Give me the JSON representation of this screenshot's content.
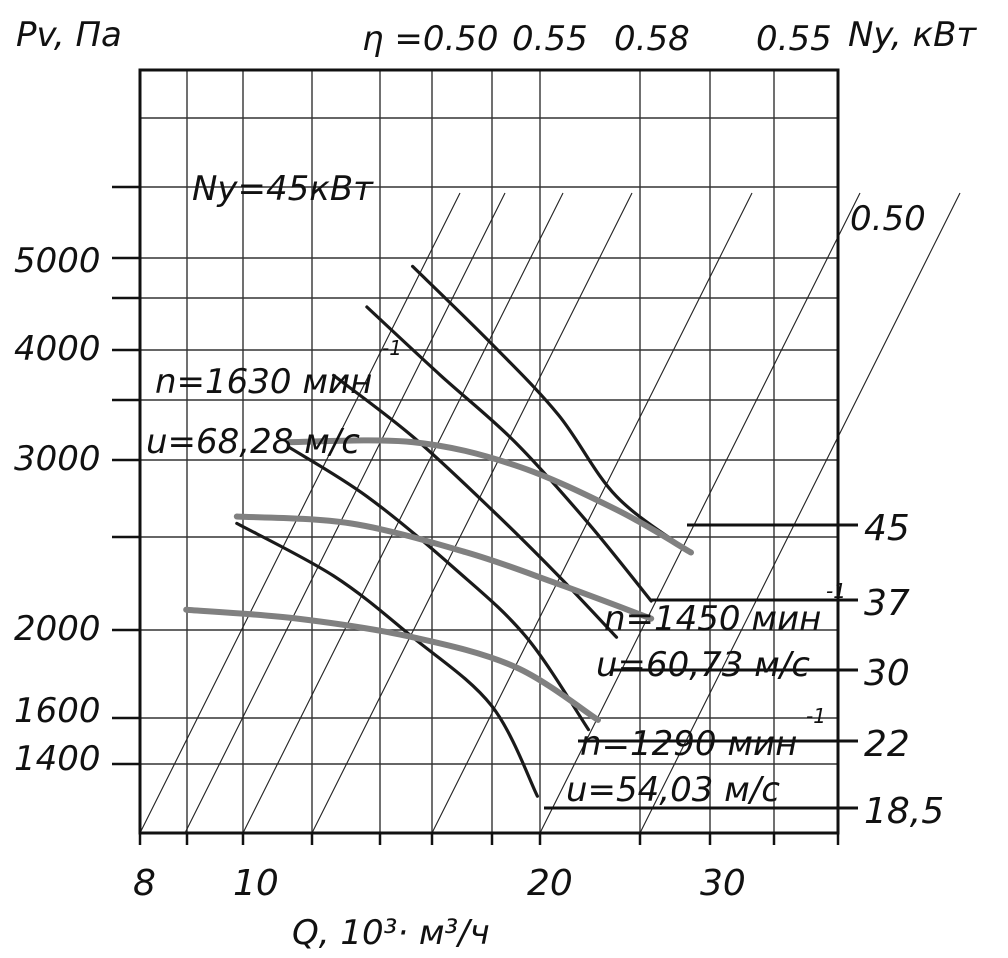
{
  "chart_data": {
    "type": "line",
    "title": "",
    "xlabel": "Q, 10³· м³/ч",
    "ylabel": "Pv, Па",
    "y2label": "Ny, кВт",
    "x_scale": "log",
    "y_scale": "log",
    "xlim": [
      8,
      40
    ],
    "ylim": [
      1150,
      9000
    ],
    "x_ticks": [
      "8",
      "10",
      "20",
      "30"
    ],
    "y_ticks": [
      "1400",
      "1600",
      "2000",
      "3000",
      "4000",
      "5000"
    ],
    "grid": true,
    "power_levels": [
      "45",
      "37",
      "30",
      "22",
      "18,5"
    ],
    "power_label": "Ny=45кВт",
    "efficiency_labels": [
      "η =0.50",
      "0.55",
      "0.58",
      "0.55",
      "0.50"
    ],
    "speed_labels": [
      {
        "n": "n=1630 мин",
        "exp": "-1",
        "u": "u=68,28 м/с"
      },
      {
        "n": "n=1450 мин",
        "exp": "-1",
        "u": "u=60,73 м/с"
      },
      {
        "n": "n=1290 мин",
        "exp": "-1",
        "u": "u=54,03 м/с"
      }
    ],
    "series": [
      {
        "kind": "pressure",
        "points": [
          [
            15.0,
            5300
          ],
          [
            18.0,
            4300
          ],
          [
            21.0,
            3550
          ],
          [
            24.0,
            2850
          ],
          [
            28.5,
            2450
          ]
        ]
      },
      {
        "kind": "pressure",
        "points": [
          [
            13.5,
            4750
          ],
          [
            16.0,
            3950
          ],
          [
            19.0,
            3300
          ],
          [
            22.5,
            2650
          ],
          [
            26.0,
            2150
          ]
        ]
      },
      {
        "kind": "pressure",
        "points": [
          [
            12.5,
            3950
          ],
          [
            15.0,
            3350
          ],
          [
            18.0,
            2750
          ],
          [
            21.0,
            2300
          ],
          [
            24.0,
            1950
          ]
        ]
      },
      {
        "kind": "pressure",
        "points": [
          [
            11.3,
            3250
          ],
          [
            13.5,
            2850
          ],
          [
            16.5,
            2350
          ],
          [
            19.5,
            1950
          ],
          [
            22.5,
            1520
          ]
        ]
      },
      {
        "kind": "pressure",
        "points": [
          [
            10.0,
            2650
          ],
          [
            12.5,
            2300
          ],
          [
            15.0,
            1950
          ],
          [
            18.0,
            1620
          ],
          [
            20.0,
            1270
          ]
        ]
      },
      {
        "kind": "speed",
        "points": [
          [
            11.3,
            3300
          ],
          [
            15.0,
            3300
          ],
          [
            19.0,
            3100
          ],
          [
            24.0,
            2750
          ],
          [
            28.5,
            2450
          ]
        ]
      },
      {
        "kind": "speed",
        "points": [
          [
            10.0,
            2700
          ],
          [
            13.0,
            2650
          ],
          [
            17.0,
            2450
          ],
          [
            21.0,
            2250
          ],
          [
            26.0,
            2050
          ]
        ]
      },
      {
        "kind": "speed",
        "points": [
          [
            8.9,
            2100
          ],
          [
            11.5,
            2050
          ],
          [
            15.0,
            1950
          ],
          [
            19.0,
            1800
          ],
          [
            23.0,
            1560
          ]
        ]
      }
    ]
  }
}
